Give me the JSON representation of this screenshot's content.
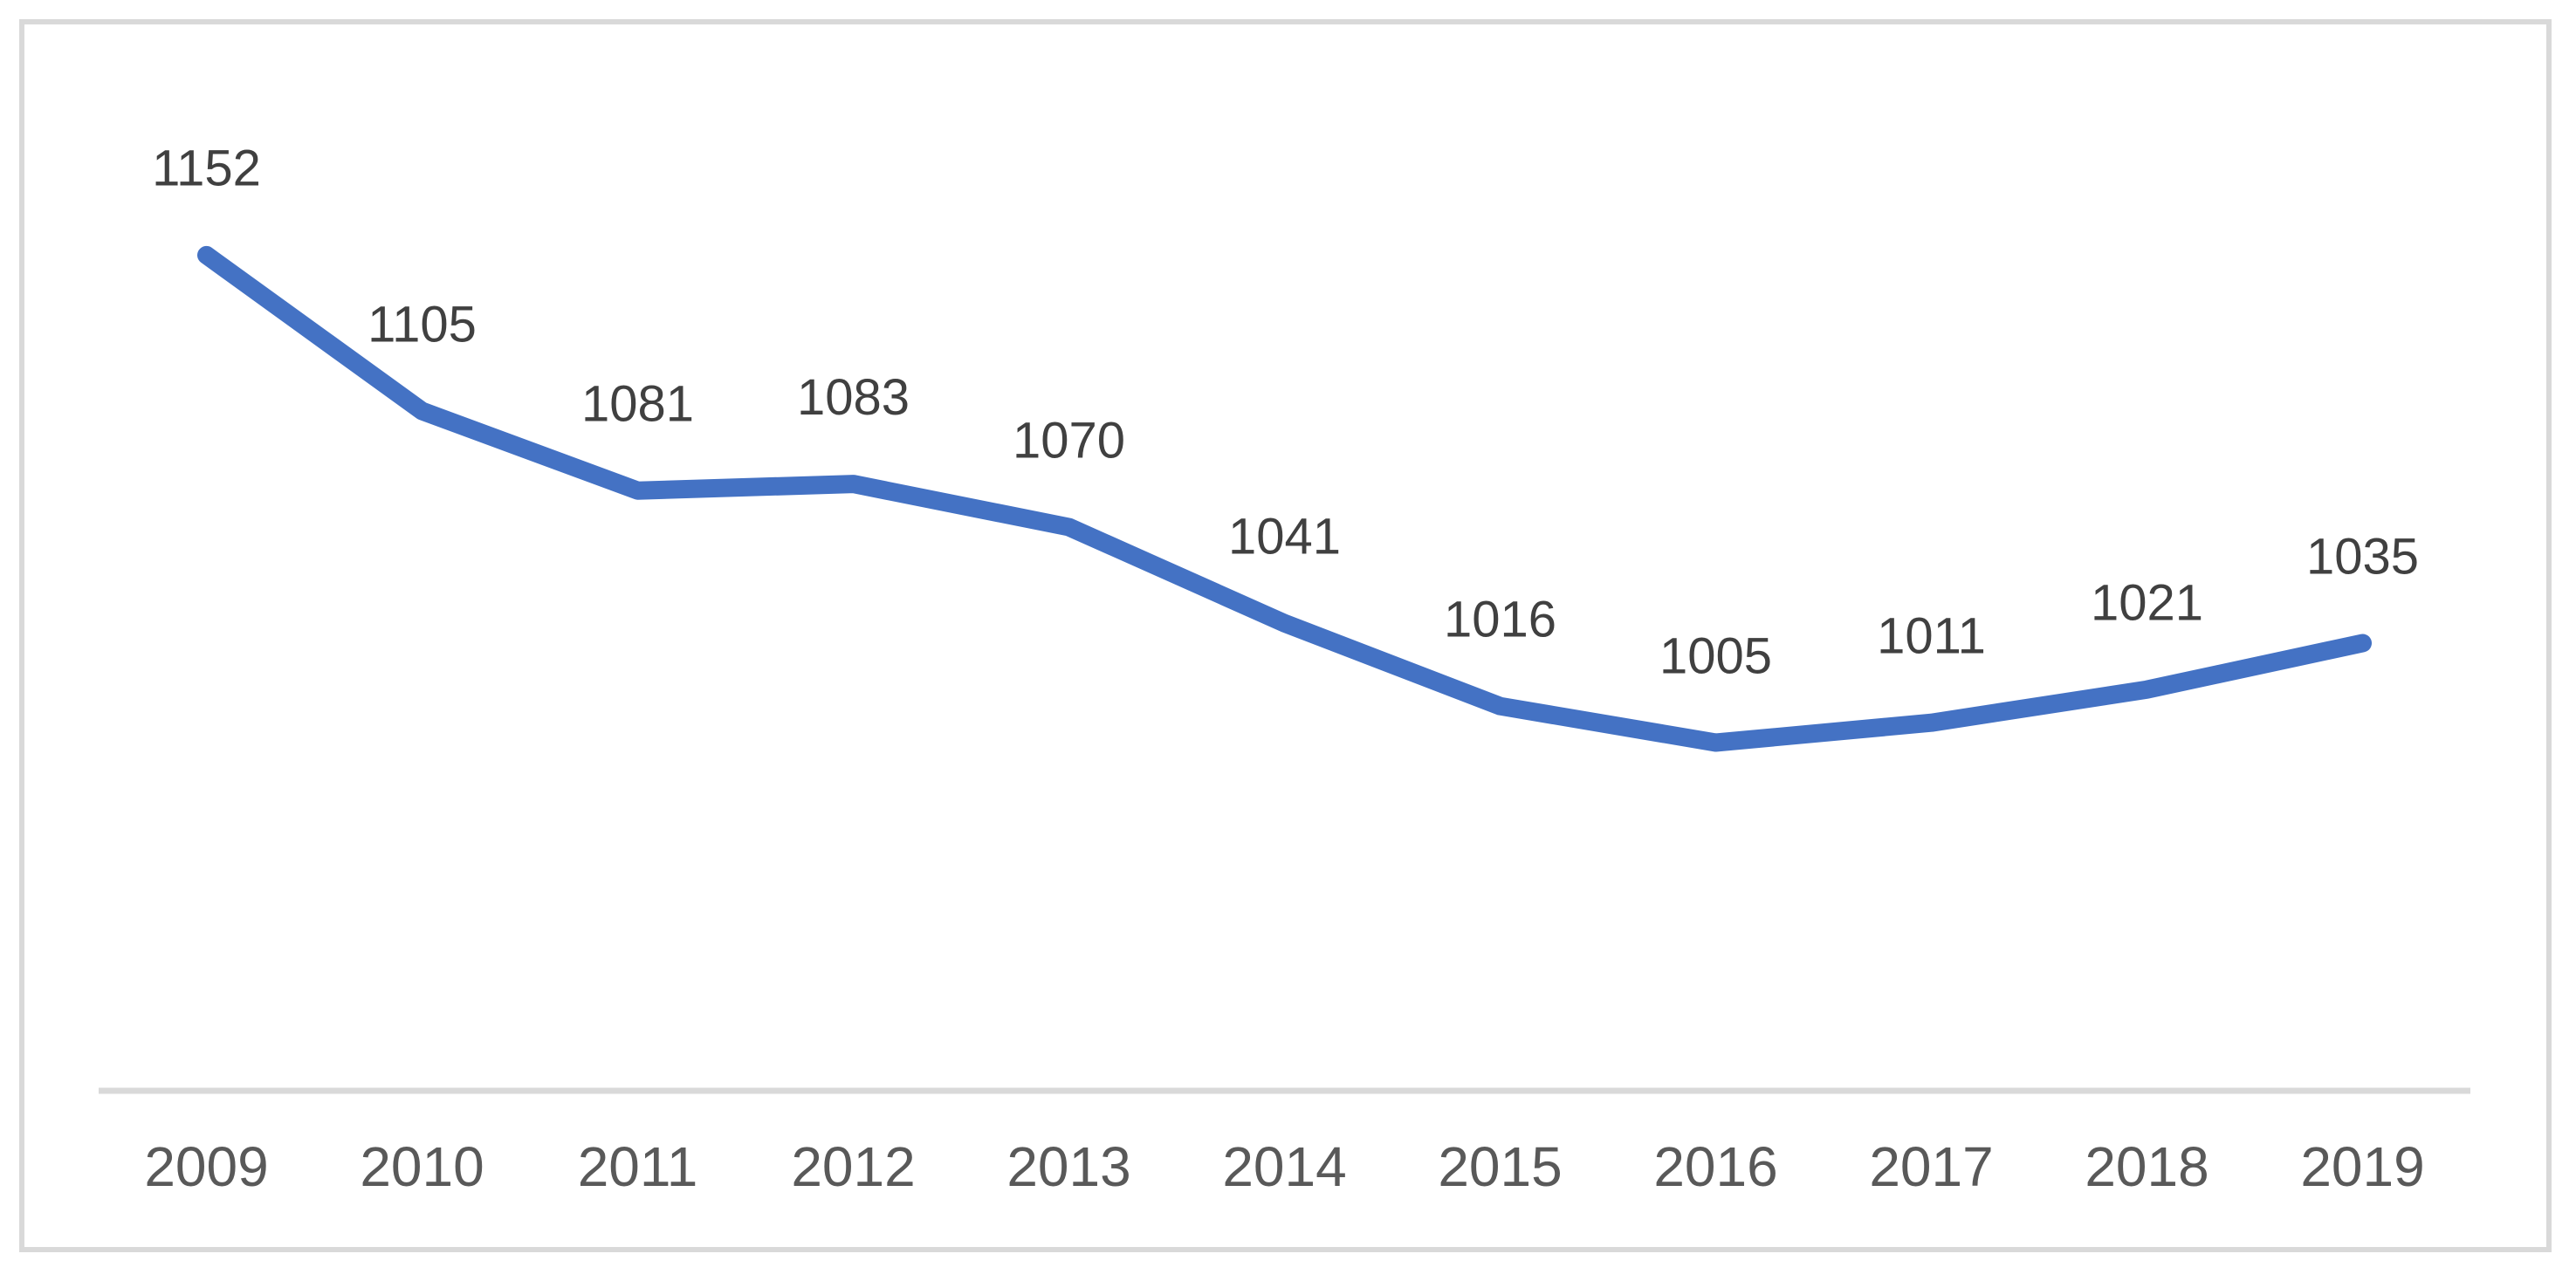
{
  "chart_data": {
    "type": "line",
    "title": "",
    "xlabel": "",
    "ylabel": "",
    "categories": [
      "2009",
      "2010",
      "2011",
      "2012",
      "2013",
      "2014",
      "2015",
      "2016",
      "2017",
      "2018",
      "2019"
    ],
    "series": [
      {
        "name": "",
        "values": [
          1152,
          1105,
          1081,
          1083,
          1070,
          1041,
          1016,
          1005,
          1011,
          1021,
          1035
        ],
        "data_labels": [
          "1152",
          "1105",
          "1081",
          "1083",
          "1070",
          "1041",
          "1016",
          "1005",
          "1011",
          "1021",
          "1035"
        ]
      }
    ],
    "ylim": [
      900,
      1200
    ],
    "grid": false,
    "legend_position": "none",
    "data_labels_shown": true,
    "colors": {
      "line": "#4472C4",
      "data_label_text": "#404040",
      "axis_tick_text": "#595959",
      "axis_line": "#D9D9D9",
      "frame_border": "#D9D9D9",
      "background": "#FFFFFF"
    }
  }
}
